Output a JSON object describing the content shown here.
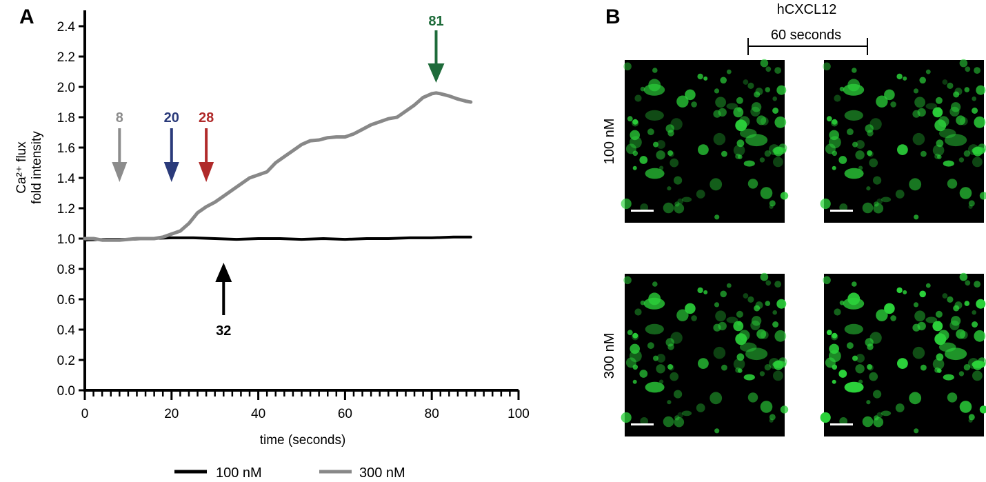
{
  "panel_a": {
    "letter": "A"
  },
  "panel_b": {
    "letter": "B",
    "title": "hCXCL12",
    "time_label": "60 seconds",
    "row_labels": [
      "100 nM",
      "300 nM"
    ],
    "colors": {
      "background": "#000000",
      "cell": "#2bd13a",
      "scale_bar": "#ffffff"
    }
  },
  "chart_data": {
    "type": "line",
    "xlabel": "time (seconds)",
    "ylabel_lines": [
      "Ca²⁺ flux",
      "fold intensity"
    ],
    "xlim": [
      0,
      100
    ],
    "ylim": [
      0,
      2.5
    ],
    "x_ticks": [
      0,
      20,
      40,
      60,
      80,
      100
    ],
    "x_tick_labels": [
      "0",
      "20",
      "40",
      "60",
      "80",
      "100"
    ],
    "y_ticks": [
      0,
      0.2,
      0.4,
      0.6,
      0.8,
      1.0,
      1.2,
      1.4,
      1.6,
      1.8,
      2.0,
      2.2,
      2.4
    ],
    "y_tick_labels": [
      "0.0",
      "0.2",
      "0.4",
      "0.6",
      "0.8",
      "1.0",
      "1.2",
      "1.4",
      "1.6",
      "1.8",
      "2.0",
      "2.2",
      "2.4"
    ],
    "grid": false,
    "legend_position": "bottom",
    "series": [
      {
        "name": "100 nM",
        "color": "#000000",
        "x": [
          0,
          5,
          10,
          15,
          20,
          25,
          30,
          35,
          40,
          45,
          50,
          55,
          60,
          65,
          70,
          75,
          80,
          85,
          89
        ],
        "values": [
          0.99,
          0.995,
          0.995,
          1.0,
          1.005,
          1.005,
          1.0,
          0.995,
          1.0,
          1.0,
          0.995,
          1.0,
          0.995,
          1.0,
          1.0,
          1.005,
          1.005,
          1.01,
          1.01
        ]
      },
      {
        "name": "300 nM",
        "color": "#888888",
        "x": [
          0,
          2,
          4,
          6,
          8,
          10,
          12,
          14,
          16,
          18,
          20,
          22,
          24,
          26,
          28,
          30,
          32,
          34,
          36,
          38,
          40,
          42,
          44,
          46,
          48,
          50,
          52,
          54,
          56,
          58,
          60,
          62,
          64,
          66,
          68,
          70,
          72,
          74,
          76,
          78,
          80,
          81,
          82,
          84,
          86,
          88,
          89
        ],
        "values": [
          1.0,
          1.0,
          0.99,
          0.99,
          0.99,
          0.995,
          1.0,
          1.0,
          1.0,
          1.01,
          1.03,
          1.05,
          1.1,
          1.17,
          1.21,
          1.24,
          1.28,
          1.32,
          1.36,
          1.4,
          1.42,
          1.44,
          1.5,
          1.54,
          1.58,
          1.62,
          1.645,
          1.65,
          1.665,
          1.67,
          1.67,
          1.69,
          1.72,
          1.75,
          1.77,
          1.79,
          1.8,
          1.84,
          1.88,
          1.93,
          1.955,
          1.96,
          1.955,
          1.94,
          1.92,
          1.905,
          1.9
        ]
      }
    ],
    "annotations": [
      {
        "label": "8",
        "x": 8,
        "direction": "down",
        "color": "#8c8c8c"
      },
      {
        "label": "20",
        "x": 20,
        "direction": "down",
        "color": "#2a3a7a"
      },
      {
        "label": "28",
        "x": 28,
        "direction": "down",
        "color": "#b02a2a"
      },
      {
        "label": "81",
        "x": 81,
        "direction": "down",
        "color": "#1e6b3a"
      },
      {
        "label": "32",
        "x": 32,
        "direction": "up",
        "color": "#000000"
      }
    ]
  }
}
